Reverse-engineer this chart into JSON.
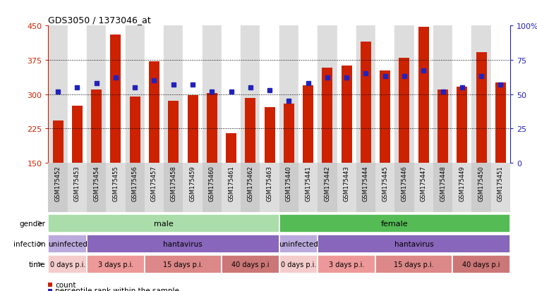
{
  "title": "GDS3050 / 1373046_at",
  "samples": [
    "GSM175452",
    "GSM175453",
    "GSM175454",
    "GSM175455",
    "GSM175456",
    "GSM175457",
    "GSM175458",
    "GSM175459",
    "GSM175460",
    "GSM175461",
    "GSM175462",
    "GSM175463",
    "GSM175440",
    "GSM175441",
    "GSM175442",
    "GSM175443",
    "GSM175444",
    "GSM175445",
    "GSM175446",
    "GSM175447",
    "GSM175448",
    "GSM175449",
    "GSM175450",
    "GSM175451"
  ],
  "counts": [
    242,
    275,
    310,
    430,
    295,
    372,
    285,
    298,
    302,
    215,
    292,
    272,
    280,
    320,
    358,
    362,
    415,
    352,
    380,
    448,
    310,
    317,
    392,
    325
  ],
  "percentile": [
    52,
    55,
    58,
    62,
    55,
    60,
    57,
    57,
    52,
    52,
    55,
    53,
    45,
    58,
    62,
    62,
    65,
    63,
    63,
    67,
    52,
    55,
    63,
    57
  ],
  "ylim_left": [
    150,
    450
  ],
  "ylim_right": [
    0,
    100
  ],
  "yticks_left": [
    150,
    225,
    300,
    375,
    450
  ],
  "yticks_right": [
    0,
    25,
    50,
    75,
    100
  ],
  "hlines": [
    225,
    300,
    375
  ],
  "bar_color": "#cc2200",
  "dot_color": "#2222bb",
  "gender_male_color": "#aaddaa",
  "gender_female_color": "#55bb55",
  "infection_uninfected_color": "#bbaadd",
  "infection_hantavirus_color": "#8866bb",
  "time_color_map": {
    "0 days p.i.": "#f5cccc",
    "3 days p.i.": "#ee9999",
    "15 days p.i.": "#dd8888",
    "40 days p.i": "#cc7777"
  },
  "gender_segments": [
    {
      "label": "male",
      "start": 0,
      "end": 12
    },
    {
      "label": "female",
      "start": 12,
      "end": 24
    }
  ],
  "infection_segments": [
    {
      "label": "uninfected",
      "start": 0,
      "end": 2
    },
    {
      "label": "hantavirus",
      "start": 2,
      "end": 12
    },
    {
      "label": "uninfected",
      "start": 12,
      "end": 14
    },
    {
      "label": "hantavirus",
      "start": 14,
      "end": 24
    }
  ],
  "time_segments": [
    {
      "label": "0 days p.i.",
      "start": 0,
      "end": 2
    },
    {
      "label": "3 days p.i.",
      "start": 2,
      "end": 5
    },
    {
      "label": "15 days p.i.",
      "start": 5,
      "end": 9
    },
    {
      "label": "40 days p.i",
      "start": 9,
      "end": 12
    },
    {
      "label": "0 days p.i.",
      "start": 12,
      "end": 14
    },
    {
      "label": "3 days p.i.",
      "start": 14,
      "end": 17
    },
    {
      "label": "15 days p.i.",
      "start": 17,
      "end": 21
    },
    {
      "label": "40 days p.i",
      "start": 21,
      "end": 24
    }
  ],
  "row_labels": [
    "gender",
    "infection",
    "time"
  ],
  "bar_color_legend": "#cc2200",
  "dot_color_legend": "#2222bb",
  "xtick_bg": "#cccccc",
  "xtick_fontsize": 6.5,
  "main_bg": "#ffffff"
}
